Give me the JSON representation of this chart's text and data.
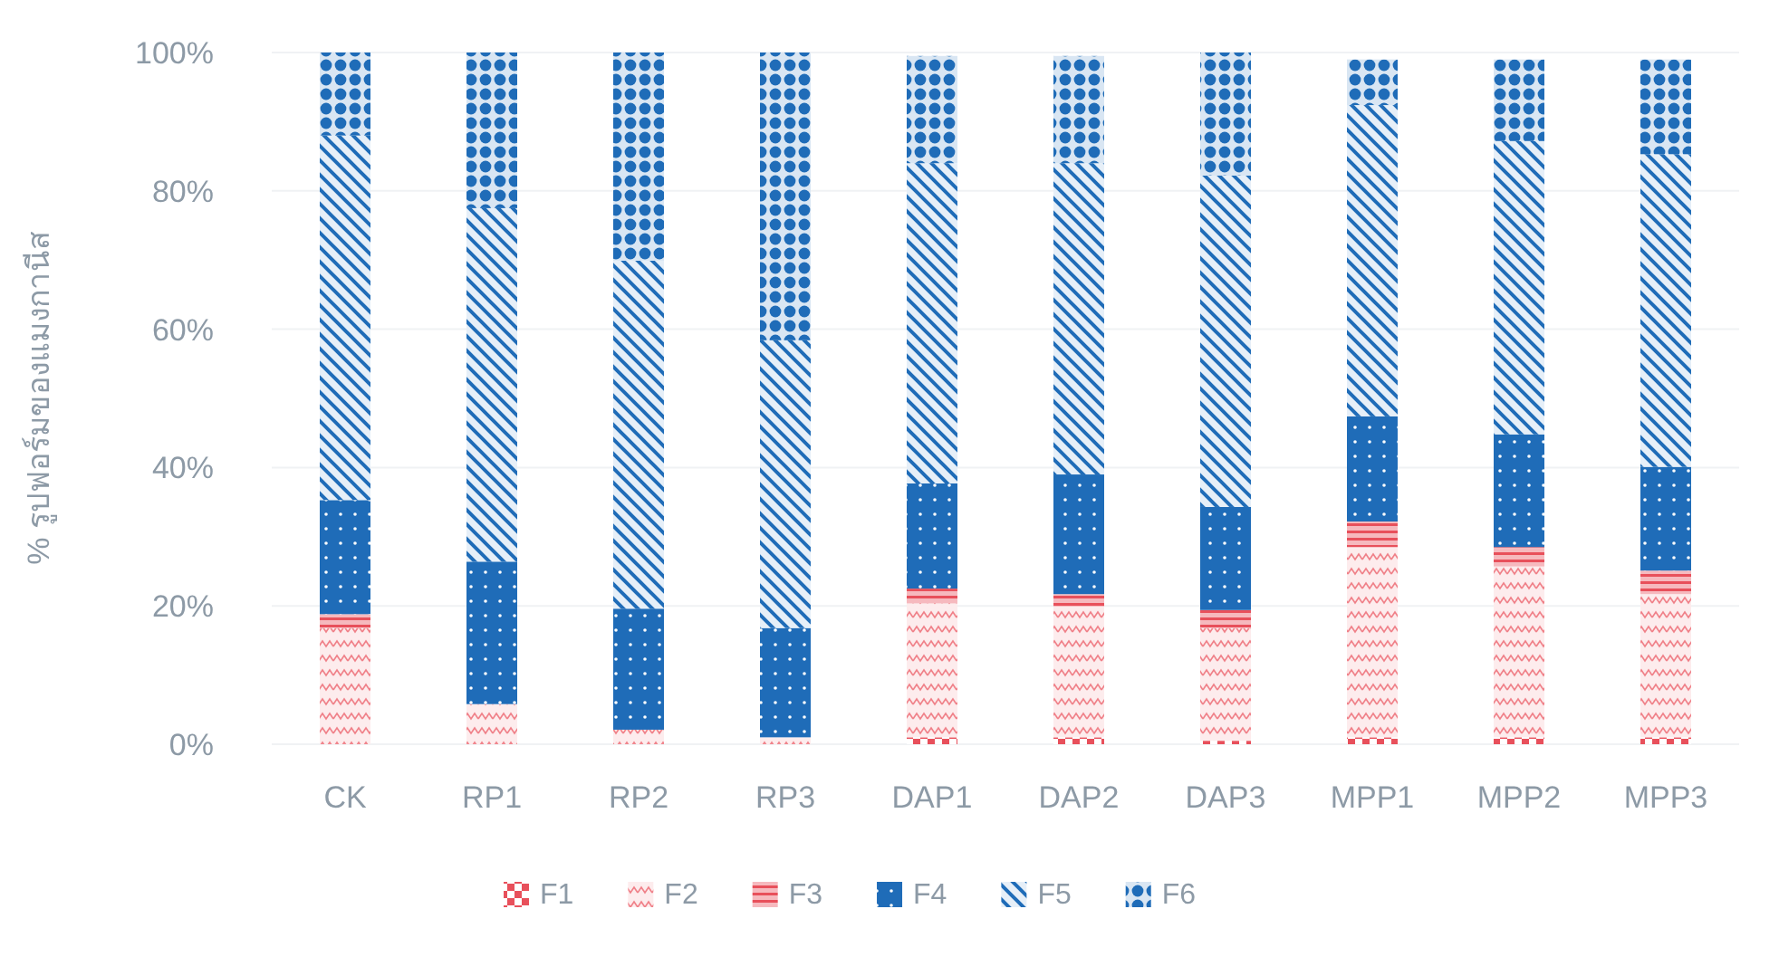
{
  "chart_data": {
    "type": "bar",
    "stacked": true,
    "ylabel": "% รูปฟอร์มของแมงกานีส",
    "categories": [
      "CK",
      "RP1",
      "RP2",
      "RP3",
      "DAP1",
      "DAP2",
      "DAP3",
      "MPP1",
      "MPP2",
      "MPP3"
    ],
    "series": [
      {
        "name": "F1",
        "color": "#e8505b",
        "values": [
          0,
          0,
          0,
          0,
          1.0,
          1.0,
          0.5,
          1.0,
          1.0,
          1.0
        ]
      },
      {
        "name": "F2",
        "color": "#f08088",
        "values": [
          16.8,
          5.8,
          2.1,
          1.0,
          19.4,
          18.9,
          16.3,
          27.5,
          24.7,
          20.7
        ]
      },
      {
        "name": "F3",
        "color": "#e8505b",
        "values": [
          2.0,
          0,
          0,
          0,
          2.1,
          1.8,
          2.6,
          3.7,
          2.8,
          3.4
        ]
      },
      {
        "name": "F4",
        "color": "#1f6cb8",
        "values": [
          16.5,
          20.6,
          17.5,
          15.8,
          15.2,
          17.3,
          14.9,
          15.2,
          16.3,
          15.0
        ]
      },
      {
        "name": "F5",
        "color": "#1f6cb8",
        "values": [
          52.7,
          51.1,
          50.3,
          41.6,
          46.3,
          45.0,
          47.9,
          45.0,
          42.4,
          45.2
        ]
      },
      {
        "name": "F6",
        "color": "#1f6cb8",
        "values": [
          12.0,
          22.5,
          30.1,
          41.6,
          15.5,
          15.5,
          17.8,
          6.6,
          11.8,
          13.7
        ]
      }
    ],
    "ylim": [
      0,
      100
    ],
    "yticks": [
      {
        "value": 0,
        "label": "0%"
      },
      {
        "value": 20,
        "label": "20%"
      },
      {
        "value": 40,
        "label": "40%"
      },
      {
        "value": 60,
        "label": "60%"
      },
      {
        "value": 80,
        "label": "80%"
      },
      {
        "value": 100,
        "label": "100%"
      }
    ],
    "grid": "y",
    "legend": "bottom"
  }
}
